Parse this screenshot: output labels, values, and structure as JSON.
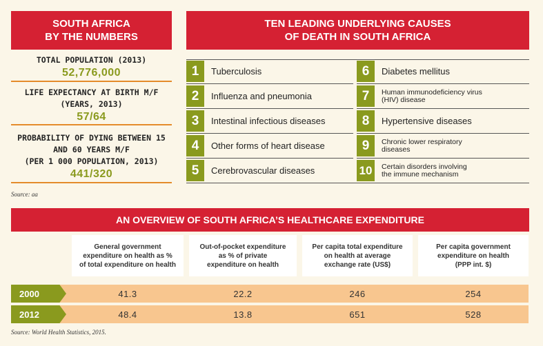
{
  "stats_panel": {
    "title_line1": "SOUTH AFRICA",
    "title_line2": "BY THE NUMBERS",
    "items": [
      {
        "label": "TOTAL POPULATION (2013)",
        "value": "52,776,000"
      },
      {
        "label_line1": "LIFE EXPECTANCY AT BIRTH M/F",
        "label_line2": "(YEARS, 2013)",
        "value": "57/64"
      },
      {
        "label_line1": "PROBABILITY OF DYING BETWEEN 15",
        "label_line2": "AND 60 YEARS M/F",
        "label_line3": "(PER 1 000 POPULATION, 2013)",
        "value": "441/320"
      }
    ],
    "source": "Source: aa"
  },
  "causes_panel": {
    "title_line1": "TEN LEADING UNDERLYING CAUSES",
    "title_line2": "OF DEATH IN SOUTH AFRICA",
    "causes": [
      {
        "num": "1",
        "text": "Tuberculosis"
      },
      {
        "num": "2",
        "text": "Influenza and pneumonia"
      },
      {
        "num": "3",
        "text": "Intestinal infectious diseases"
      },
      {
        "num": "4",
        "text": "Other forms of heart disease"
      },
      {
        "num": "5",
        "text": "Cerebrovascular diseases"
      },
      {
        "num": "6",
        "text": "Diabetes mellitus"
      },
      {
        "num": "7",
        "text_line1": "Human immunodeficiency virus",
        "text_line2": "(HIV) disease"
      },
      {
        "num": "8",
        "text": "Hypertensive diseases"
      },
      {
        "num": "9",
        "text_line1": "Chronic lower respiratory",
        "text_line2": "diseases"
      },
      {
        "num": "10",
        "text_line1": "Certain disorders involving",
        "text_line2": "the immune mechanism"
      }
    ]
  },
  "expenditure": {
    "title": "AN OVERVIEW OF SOUTH AFRICA’S HEALTHCARE EXPENDITURE",
    "columns": [
      {
        "line1": "General government",
        "line2": "expenditure on health as %",
        "line3": "of total expenditure on health"
      },
      {
        "line1": "Out-of-pocket expenditure",
        "line2": "as % of private",
        "line3": "expenditure on health"
      },
      {
        "line1": "Per capita total expenditure",
        "line2": "on health at average",
        "line3": "exchange rate (US$)"
      },
      {
        "line1": "Per capita government",
        "line2": "expenditure on health",
        "line3": "(PPP int. $)"
      }
    ],
    "rows": [
      {
        "year": "2000",
        "values": [
          "41.3",
          "22.2",
          "246",
          "254"
        ]
      },
      {
        "year": "2012",
        "values": [
          "48.4",
          "13.8",
          "651",
          "528"
        ]
      }
    ],
    "source": "Source: World Health Statistics, 2015."
  },
  "colors": {
    "red": "#d52133",
    "olive": "#8a9a1e",
    "orange": "#e48b2a",
    "peach": "#f8c68f",
    "background": "#fbf6e8"
  }
}
